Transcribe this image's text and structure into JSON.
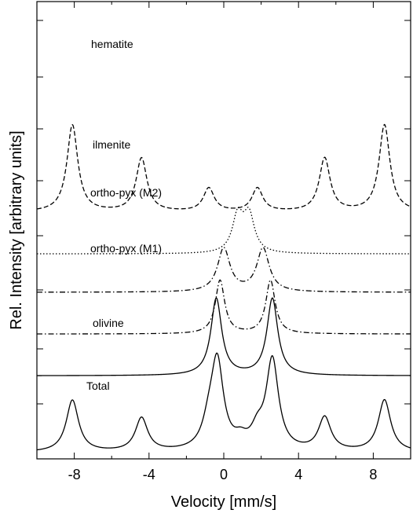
{
  "chart_data": {
    "type": "line",
    "xlabel": "Velocity [mm/s]",
    "ylabel": "Rel. Intensity [arbitrary units]",
    "xlim": [
      -10,
      10
    ],
    "x_ticks": [
      -8,
      -4,
      0,
      4,
      8
    ],
    "x_tick_labels": [
      "-8",
      "-4",
      "0",
      "4",
      "8"
    ],
    "y_ticks_shown": true,
    "y_tick_labels": [],
    "grid": false,
    "legend": "none",
    "series": [
      {
        "name": "hematite",
        "line_style": "dashed",
        "baseline": 7.2,
        "peaks": [
          {
            "x": -8.1,
            "height": 2.6
          },
          {
            "x": -4.4,
            "height": 1.6
          },
          {
            "x": -0.8,
            "height": 0.7
          },
          {
            "x": 1.8,
            "height": 0.7
          },
          {
            "x": 5.4,
            "height": 1.6
          },
          {
            "x": 8.6,
            "height": 2.6
          }
        ],
        "width": 0.35
      },
      {
        "name": "ilmenite",
        "line_style": "dotted",
        "baseline": 5.95,
        "peaks": [
          {
            "x": 0.75,
            "height": 1.1
          },
          {
            "x": 1.35,
            "height": 1.1
          }
        ],
        "width": 0.35
      },
      {
        "name": "ortho-pyx (M2)",
        "line_style": "dashdot",
        "baseline": 4.8,
        "peaks": [
          {
            "x": 0.0,
            "height": 1.3
          },
          {
            "x": 2.1,
            "height": 1.3
          }
        ],
        "width": 0.4
      },
      {
        "name": "ortho-pyx (M1)",
        "line_style": "dashdot",
        "baseline": 3.55,
        "peaks": [
          {
            "x": -0.2,
            "height": 1.6
          },
          {
            "x": 2.5,
            "height": 1.6
          }
        ],
        "width": 0.3
      },
      {
        "name": "olivine",
        "line_style": "solid",
        "baseline": 2.3,
        "peaks": [
          {
            "x": -0.4,
            "height": 2.3
          },
          {
            "x": 2.6,
            "height": 2.3
          }
        ],
        "width": 0.35
      },
      {
        "name": "Total",
        "line_style": "solid",
        "baseline": 0.0,
        "peaks": [
          {
            "x": -8.1,
            "height": 1.55
          },
          {
            "x": -4.4,
            "height": 1.0
          },
          {
            "x": -0.8,
            "height": 0.6
          },
          {
            "x": -0.35,
            "height": 2.6
          },
          {
            "x": 0.9,
            "height": 0.25
          },
          {
            "x": 1.8,
            "height": 0.5
          },
          {
            "x": 2.6,
            "height": 2.7
          },
          {
            "x": 5.4,
            "height": 1.0
          },
          {
            "x": 8.6,
            "height": 1.55
          }
        ],
        "width": 0.4
      }
    ]
  }
}
